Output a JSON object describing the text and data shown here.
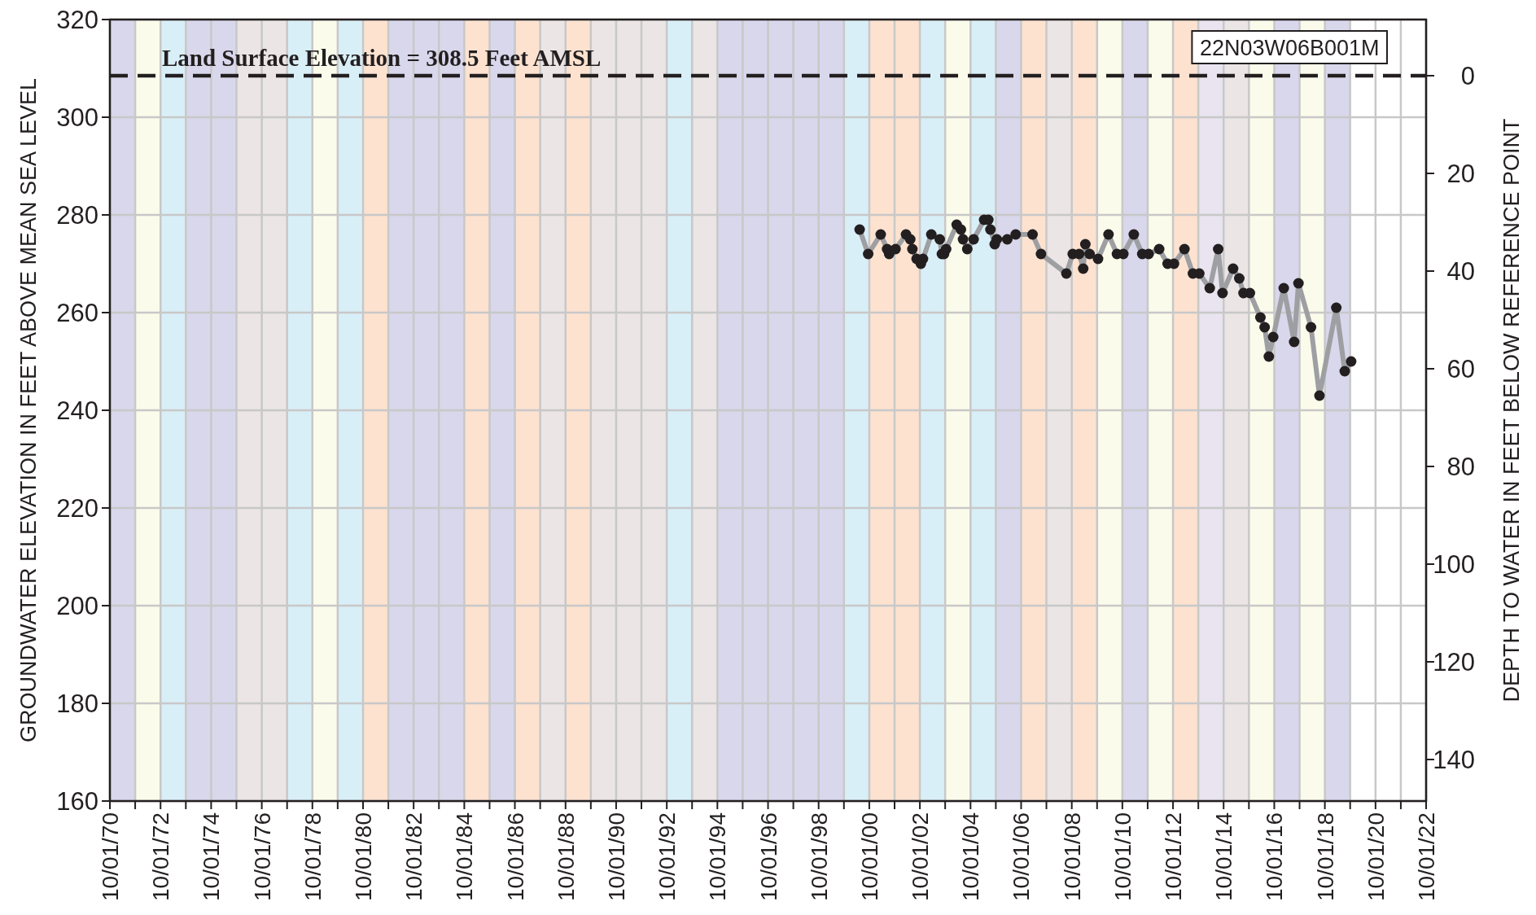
{
  "chart_data": {
    "type": "line",
    "ylabel": "GROUNDWATER ELEVATION IN FEET ABOVE MEAN SEA LEVEL",
    "y2label": "DEPTH TO WATER IN FEET BELOW REFERENCE POINT",
    "annotations": [
      "22N03W06B001M"
    ],
    "xlim": [
      "1970-10-01",
      "2022-10-01"
    ],
    "xticks": [
      {
        "value": "1970-10-01",
        "label": "10/01/70"
      },
      {
        "value": "1971-10-01",
        "label": null
      },
      {
        "value": "1972-10-01",
        "label": "10/01/72"
      },
      {
        "value": "1973-10-01",
        "label": null
      },
      {
        "value": "1974-10-01",
        "label": "10/01/74"
      },
      {
        "value": "1975-10-01",
        "label": null
      },
      {
        "value": "1976-10-01",
        "label": "10/01/76"
      },
      {
        "value": "1977-10-01",
        "label": null
      },
      {
        "value": "1978-10-01",
        "label": "10/01/78"
      },
      {
        "value": "1979-10-01",
        "label": null
      },
      {
        "value": "1980-10-01",
        "label": "10/01/80"
      },
      {
        "value": "1981-10-01",
        "label": null
      },
      {
        "value": "1982-10-01",
        "label": "10/01/82"
      },
      {
        "value": "1983-10-01",
        "label": null
      },
      {
        "value": "1984-10-01",
        "label": "10/01/84"
      },
      {
        "value": "1985-10-01",
        "label": null
      },
      {
        "value": "1986-10-01",
        "label": "10/01/86"
      },
      {
        "value": "1987-10-01",
        "label": null
      },
      {
        "value": "1988-10-01",
        "label": "10/01/88"
      },
      {
        "value": "1989-10-01",
        "label": null
      },
      {
        "value": "1990-10-01",
        "label": "10/01/90"
      },
      {
        "value": "1991-10-01",
        "label": null
      },
      {
        "value": "1992-10-01",
        "label": "10/01/92"
      },
      {
        "value": "1993-10-01",
        "label": null
      },
      {
        "value": "1994-10-01",
        "label": "10/01/94"
      },
      {
        "value": "1995-10-01",
        "label": null
      },
      {
        "value": "1996-10-01",
        "label": "10/01/96"
      },
      {
        "value": "1997-10-01",
        "label": null
      },
      {
        "value": "1998-10-01",
        "label": "10/01/98"
      },
      {
        "value": "1999-10-01",
        "label": null
      },
      {
        "value": "2000-10-01",
        "label": "10/01/00"
      },
      {
        "value": "2001-10-01",
        "label": null
      },
      {
        "value": "2002-10-01",
        "label": "10/01/02"
      },
      {
        "value": "2003-10-01",
        "label": null
      },
      {
        "value": "2004-10-01",
        "label": "10/01/04"
      },
      {
        "value": "2005-10-01",
        "label": null
      },
      {
        "value": "2006-10-01",
        "label": "10/01/06"
      },
      {
        "value": "2007-10-01",
        "label": null
      },
      {
        "value": "2008-10-01",
        "label": "10/01/08"
      },
      {
        "value": "2009-10-01",
        "label": null
      },
      {
        "value": "2010-10-01",
        "label": "10/01/10"
      },
      {
        "value": "2011-10-01",
        "label": null
      },
      {
        "value": "2012-10-01",
        "label": "10/01/12"
      },
      {
        "value": "2013-10-01",
        "label": null
      },
      {
        "value": "2014-10-01",
        "label": "10/01/14"
      },
      {
        "value": "2015-10-01",
        "label": null
      },
      {
        "value": "2016-10-01",
        "label": "10/01/16"
      },
      {
        "value": "2017-10-01",
        "label": null
      },
      {
        "value": "2018-10-01",
        "label": "10/01/18"
      },
      {
        "value": "2019-10-01",
        "label": null
      },
      {
        "value": "2020-10-01",
        "label": "10/01/20"
      },
      {
        "value": "2021-10-01",
        "label": null
      },
      {
        "value": "2022-10-01",
        "label": "10/01/22"
      }
    ],
    "ylim": [
      160,
      320
    ],
    "yticks": [
      160,
      180,
      200,
      220,
      240,
      260,
      280,
      300,
      320
    ],
    "y2lim": [
      148.5,
      -11.5
    ],
    "y2ticks": [
      0,
      20,
      40,
      60,
      80,
      100,
      120,
      140
    ],
    "grid": true,
    "x": [
      "2000-05",
      "2000-09",
      "2001-03",
      "2001-06",
      "2001-07",
      "2001-10",
      "2002-03",
      "2002-05",
      "2002-06",
      "2002-08",
      "2002-10",
      "2002-11",
      "2003-03",
      "2003-07",
      "2003-08",
      "2003-09",
      "2003-10",
      "2004-03",
      "2004-05",
      "2004-06",
      "2004-08",
      "2004-11",
      "2005-04",
      "2005-06",
      "2005-07",
      "2005-09",
      "2005-10",
      "2006-03",
      "2006-07",
      "2007-03",
      "2007-07",
      "2008-07",
      "2008-10",
      "2009-01",
      "2009-03",
      "2009-04",
      "2009-06",
      "2009-10",
      "2010-03",
      "2010-07",
      "2010-10",
      "2011-03",
      "2011-07",
      "2011-10",
      "2012-03",
      "2012-07",
      "2012-10",
      "2013-03",
      "2013-07",
      "2013-10",
      "2014-03",
      "2014-07",
      "2014-09",
      "2015-02",
      "2015-05",
      "2015-07",
      "2015-10",
      "2016-03",
      "2016-05",
      "2016-07",
      "2016-09",
      "2017-02",
      "2017-07",
      "2017-09",
      "2018-03",
      "2018-07",
      "2019-03",
      "2019-07",
      "2019-10"
    ],
    "series": [
      {
        "color": "#9d9fa2",
        "marker": "none",
        "values": [
          277,
          272,
          276,
          273,
          272,
          273,
          276,
          275,
          273,
          271,
          270,
          271,
          276,
          275,
          272,
          272,
          273,
          278,
          277,
          275,
          273,
          275,
          279,
          279,
          277,
          274,
          275,
          275,
          276,
          276,
          272,
          268,
          272,
          272,
          269,
          274,
          272,
          271,
          276,
          272,
          272,
          276,
          272,
          272,
          273,
          270,
          270,
          273,
          268,
          268,
          265,
          273,
          264,
          269,
          267,
          264,
          264,
          259,
          257,
          251,
          255,
          265,
          254,
          266,
          257,
          243,
          261,
          248,
          250
        ]
      },
      {
        "type": "scatter",
        "color": "#231f20",
        "marker": "circle",
        "values": [
          277,
          272,
          276,
          273,
          272,
          273,
          276,
          275,
          273,
          271,
          270,
          271,
          276,
          275,
          272,
          272,
          273,
          278,
          277,
          275,
          273,
          275,
          279,
          279,
          277,
          274,
          275,
          275,
          276,
          276,
          272,
          268,
          272,
          272,
          269,
          274,
          272,
          271,
          276,
          272,
          272,
          276,
          272,
          272,
          273,
          270,
          270,
          273,
          268,
          268,
          265,
          273,
          264,
          269,
          267,
          264,
          264,
          259,
          257,
          251,
          255,
          265,
          254,
          266,
          257,
          243,
          261,
          248,
          250
        ]
      }
    ],
    "ref_lines": [
      {
        "axis": "y",
        "value": 308.5,
        "label": "Land Surface Elevation = 308.5 Feet AMSL",
        "color": "#231f20",
        "line_style": "dashed"
      }
    ],
    "bands": [
      {
        "axis": "x",
        "from": "1970-10-01",
        "to": "1971-10-01",
        "color": "#d9d7ec"
      },
      {
        "axis": "x",
        "from": "1971-10-01",
        "to": "1972-10-01",
        "color": "#fbfbeb"
      },
      {
        "axis": "x",
        "from": "1972-10-01",
        "to": "1973-10-01",
        "color": "#d9eff7"
      },
      {
        "axis": "x",
        "from": "1973-10-01",
        "to": "1975-10-01",
        "color": "#d9d7ec"
      },
      {
        "axis": "x",
        "from": "1975-10-01",
        "to": "1977-10-01",
        "color": "#ebe5e5"
      },
      {
        "axis": "x",
        "from": "1977-10-01",
        "to": "1978-10-01",
        "color": "#d9eff7"
      },
      {
        "axis": "x",
        "from": "1978-10-01",
        "to": "1979-10-01",
        "color": "#fbfbeb"
      },
      {
        "axis": "x",
        "from": "1979-10-01",
        "to": "1980-10-01",
        "color": "#d9eff7"
      },
      {
        "axis": "x",
        "from": "1980-10-01",
        "to": "1981-10-01",
        "color": "#fde2d0"
      },
      {
        "axis": "x",
        "from": "1981-10-01",
        "to": "1984-10-01",
        "color": "#d9d7ec"
      },
      {
        "axis": "x",
        "from": "1984-10-01",
        "to": "1985-10-01",
        "color": "#fde2d0"
      },
      {
        "axis": "x",
        "from": "1985-10-01",
        "to": "1986-10-01",
        "color": "#d9d7ec"
      },
      {
        "axis": "x",
        "from": "1986-10-01",
        "to": "1987-10-01",
        "color": "#fde2d0"
      },
      {
        "axis": "x",
        "from": "1987-10-01",
        "to": "1988-10-01",
        "color": "#ebe5e5"
      },
      {
        "axis": "x",
        "from": "1988-10-01",
        "to": "1989-10-01",
        "color": "#fde2d0"
      },
      {
        "axis": "x",
        "from": "1989-10-01",
        "to": "1992-10-01",
        "color": "#ebe5e5"
      },
      {
        "axis": "x",
        "from": "1992-10-01",
        "to": "1993-10-01",
        "color": "#d9eff7"
      },
      {
        "axis": "x",
        "from": "1993-10-01",
        "to": "1994-10-01",
        "color": "#ebe5e5"
      },
      {
        "axis": "x",
        "from": "1994-10-01",
        "to": "1999-10-01",
        "color": "#d9d7ec"
      },
      {
        "axis": "x",
        "from": "1999-10-01",
        "to": "2000-10-01",
        "color": "#d9eff7"
      },
      {
        "axis": "x",
        "from": "2000-10-01",
        "to": "2002-10-01",
        "color": "#fde2d0"
      },
      {
        "axis": "x",
        "from": "2002-10-01",
        "to": "2003-10-01",
        "color": "#d9eff7"
      },
      {
        "axis": "x",
        "from": "2003-10-01",
        "to": "2004-10-01",
        "color": "#fbfbeb"
      },
      {
        "axis": "x",
        "from": "2004-10-01",
        "to": "2005-10-01",
        "color": "#d9eff7"
      },
      {
        "axis": "x",
        "from": "2005-10-01",
        "to": "2006-10-01",
        "color": "#d9d7ec"
      },
      {
        "axis": "x",
        "from": "2006-10-01",
        "to": "2007-10-01",
        "color": "#fde2d0"
      },
      {
        "axis": "x",
        "from": "2007-10-01",
        "to": "2008-10-01",
        "color": "#ebe5e5"
      },
      {
        "axis": "x",
        "from": "2008-10-01",
        "to": "2009-10-01",
        "color": "#fde2d0"
      },
      {
        "axis": "x",
        "from": "2009-10-01",
        "to": "2010-10-01",
        "color": "#fbfbeb"
      },
      {
        "axis": "x",
        "from": "2010-10-01",
        "to": "2011-10-01",
        "color": "#d9d7ec"
      },
      {
        "axis": "x",
        "from": "2011-10-01",
        "to": "2012-10-01",
        "color": "#fbfbeb"
      },
      {
        "axis": "x",
        "from": "2012-10-01",
        "to": "2013-10-01",
        "color": "#fde2d0"
      },
      {
        "axis": "x",
        "from": "2013-10-01",
        "to": "2014-10-01",
        "color": "#e9e4ef"
      },
      {
        "axis": "x",
        "from": "2014-10-01",
        "to": "2015-10-01",
        "color": "#ebe5e5"
      },
      {
        "axis": "x",
        "from": "2015-10-01",
        "to": "2016-10-01",
        "color": "#fbfbeb"
      },
      {
        "axis": "x",
        "from": "2016-10-01",
        "to": "2017-10-01",
        "color": "#d9d7ec"
      },
      {
        "axis": "x",
        "from": "2017-10-01",
        "to": "2018-10-01",
        "color": "#fbfbeb"
      },
      {
        "axis": "x",
        "from": "2018-10-01",
        "to": "2019-10-01",
        "color": "#d9d7ec"
      }
    ]
  }
}
